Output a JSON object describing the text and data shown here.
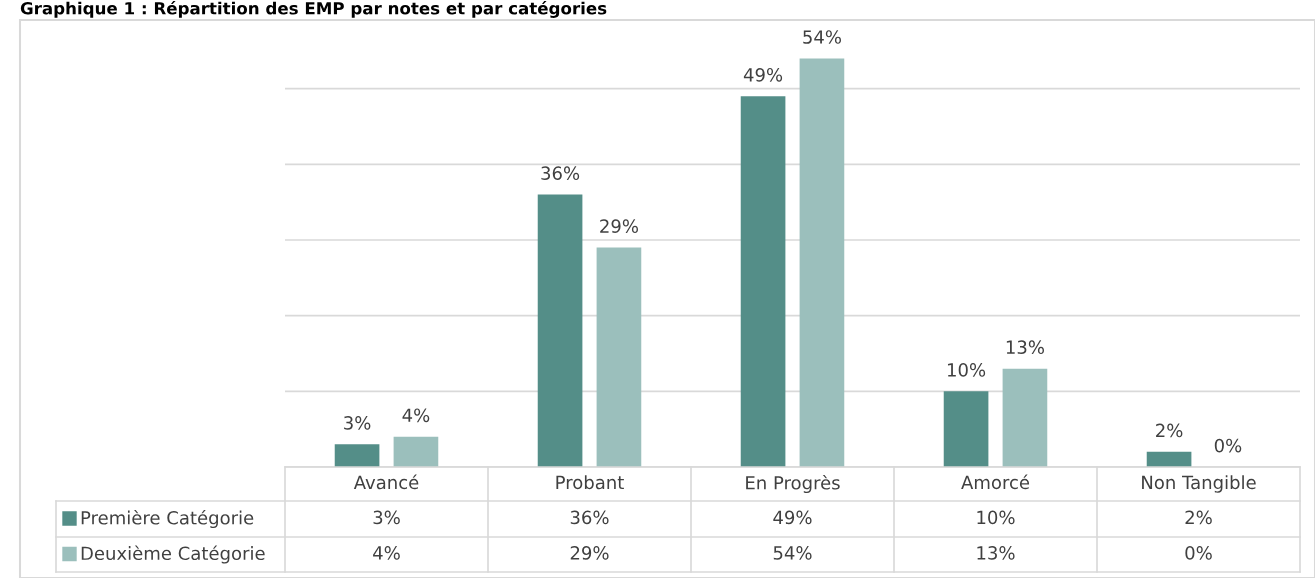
{
  "chart_data": {
    "type": "bar",
    "title": "Graphique 1 : Répartition des EMP par notes et par catégories",
    "categories": [
      "Avancé",
      "Probant",
      "En Progrès",
      "Amorcé",
      "Non Tangible"
    ],
    "series": [
      {
        "name": "Première Catégorie",
        "color": "#548e88",
        "values": [
          3,
          36,
          49,
          10,
          2
        ],
        "value_labels": [
          "3%",
          "36%",
          "49%",
          "10%",
          "2%"
        ]
      },
      {
        "name": "Deuxième Catégorie",
        "color": "#9bbfbc",
        "values": [
          4,
          29,
          54,
          13,
          0
        ],
        "value_labels": [
          "4%",
          "29%",
          "54%",
          "13%",
          "0%"
        ]
      }
    ],
    "grid": "y",
    "legend": "bottom"
  }
}
